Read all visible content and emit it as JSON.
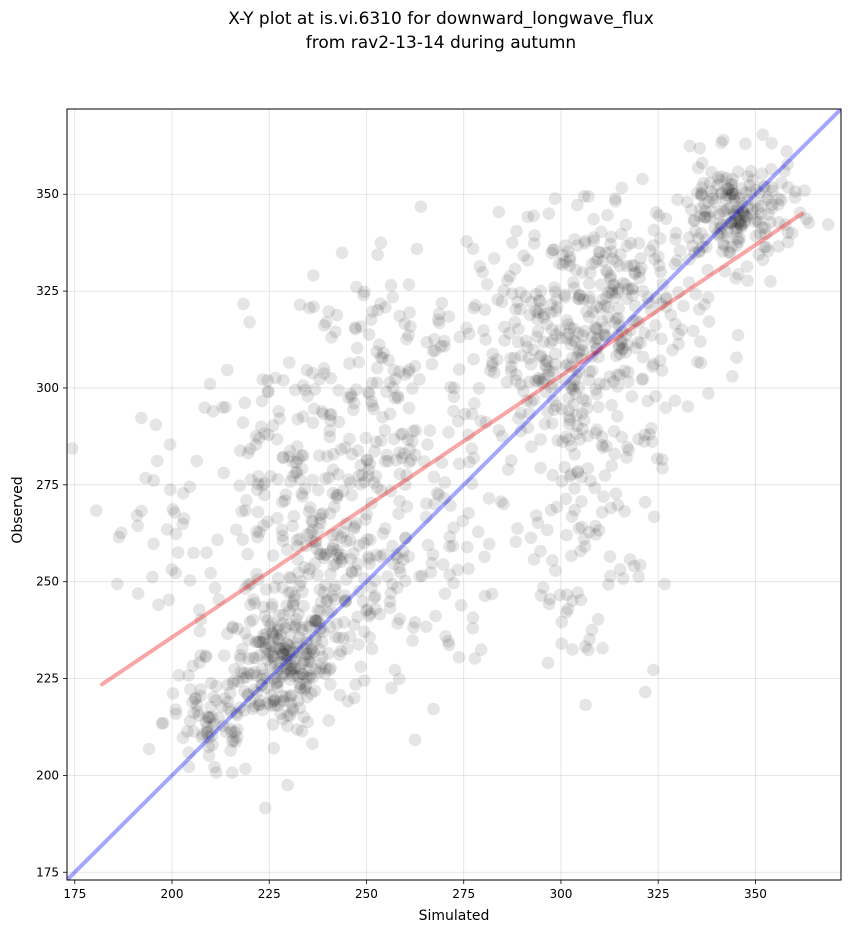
{
  "chart_data": {
    "type": "scatter",
    "title_line1": "X-Y plot at is.vi.6310 for downward_longwave_flux",
    "title_line2": "from rav2-13-14 during autumn",
    "xlabel": "Simulated",
    "ylabel": "Observed",
    "xlim": [
      173,
      372
    ],
    "ylim": [
      173,
      372
    ],
    "xticks": [
      175,
      200,
      225,
      250,
      275,
      300,
      325,
      350
    ],
    "yticks": [
      175,
      200,
      225,
      250,
      275,
      300,
      325,
      350
    ],
    "grid": true,
    "point_color": "#000000",
    "point_alpha": 0.1,
    "identity_line": {
      "name": "1:1 line",
      "color": "#0000ff",
      "alpha": 0.35,
      "x": [
        173,
        372
      ],
      "y": [
        173,
        372
      ]
    },
    "fit_line": {
      "name": "regression fit",
      "color": "#ee0000",
      "alpha": 0.35,
      "x": [
        182,
        362
      ],
      "y": [
        223.5,
        345
      ]
    },
    "clusters": [
      {
        "center": [
          228,
          228
        ],
        "spread": [
          6,
          8
        ],
        "count": 180
      },
      {
        "center": [
          240,
          245
        ],
        "spread": [
          10,
          14
        ],
        "count": 170
      },
      {
        "center": [
          210,
          214
        ],
        "spread": [
          6,
          8
        ],
        "count": 80
      },
      {
        "center": [
          232,
          272
        ],
        "spread": [
          14,
          20
        ],
        "count": 180
      },
      {
        "center": [
          255,
          300
        ],
        "spread": [
          14,
          20
        ],
        "count": 160
      },
      {
        "center": [
          263,
          256
        ],
        "spread": [
          10,
          14
        ],
        "count": 70
      },
      {
        "center": [
          300,
          305
        ],
        "spread": [
          10,
          18
        ],
        "count": 200
      },
      {
        "center": [
          318,
          318
        ],
        "spread": [
          10,
          14
        ],
        "count": 180
      },
      {
        "center": [
          345,
          345
        ],
        "spread": [
          8,
          7
        ],
        "count": 200
      },
      {
        "center": [
          305,
          260
        ],
        "spread": [
          10,
          18
        ],
        "count": 80
      },
      {
        "center": [
          290,
          320
        ],
        "spread": [
          12,
          14
        ],
        "count": 60
      },
      {
        "center": [
          195,
          262
        ],
        "spread": [
          8,
          14
        ],
        "count": 30
      }
    ]
  }
}
